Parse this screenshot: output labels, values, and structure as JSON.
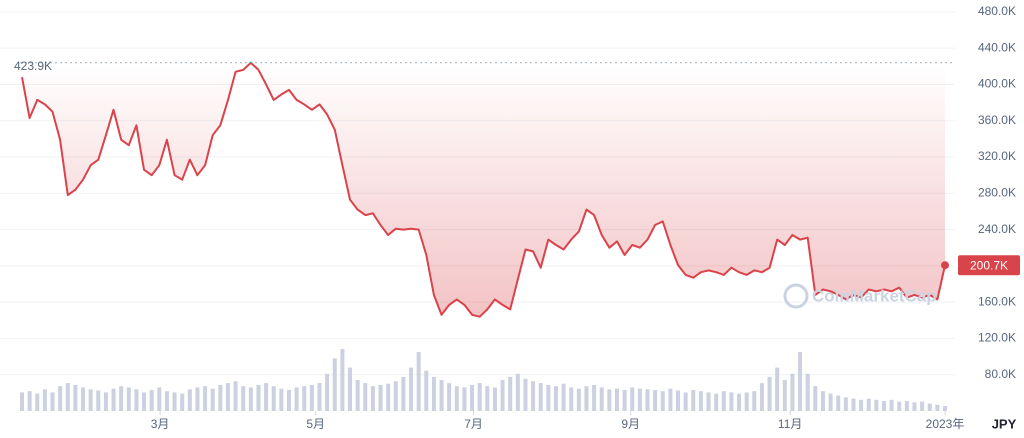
{
  "chart_data": {
    "type": "line",
    "currency": "JPY",
    "watermark": "CoinMarketCap",
    "color": "#d9434a",
    "high_color": "#16c784",
    "volume_color": "#ccd0e0",
    "grid": true,
    "xlim": [
      0,
      121
    ],
    "ylim": [
      40000,
      492000
    ],
    "xticks": [
      {
        "value": 18.1,
        "label": "3月"
      },
      {
        "value": 38.5,
        "label": "5月"
      },
      {
        "value": 59.2,
        "label": "7月"
      },
      {
        "value": 79.8,
        "label": "9月"
      },
      {
        "value": 100.7,
        "label": "11月"
      },
      {
        "value": 121,
        "label": "2023年"
      }
    ],
    "yticks": [
      {
        "value": 80000,
        "label": "80.0K"
      },
      {
        "value": 120000,
        "label": "120.0K"
      },
      {
        "value": 160000,
        "label": "160.0K"
      },
      {
        "value": 200000,
        "label": "200.0K"
      },
      {
        "value": 240000,
        "label": "240.0K"
      },
      {
        "value": 280000,
        "label": "280.0K"
      },
      {
        "value": 320000,
        "label": "320.0K"
      },
      {
        "value": 360000,
        "label": "360.0K"
      },
      {
        "value": 400000,
        "label": "400.0K"
      },
      {
        "value": 440000,
        "label": "440.0K"
      },
      {
        "value": 480000,
        "label": "480.0K"
      }
    ],
    "reference_line": {
      "value": 423900,
      "label": "423.9K"
    },
    "values": [
      408000,
      363000,
      383000,
      378000,
      370000,
      339000,
      278000,
      284000,
      295000,
      311000,
      317000,
      344000,
      372000,
      339000,
      333000,
      355000,
      306000,
      300000,
      311000,
      339000,
      300000,
      295000,
      317000,
      300000,
      311000,
      344000,
      355000,
      383000,
      414000,
      416000,
      423900,
      416000,
      400000,
      383000,
      389000,
      394000,
      383000,
      378000,
      372000,
      378000,
      367000,
      350000,
      311000,
      273000,
      262000,
      256000,
      258000,
      245000,
      234000,
      241000,
      240000,
      241000,
      240000,
      212000,
      168000,
      146000,
      157000,
      163000,
      157000,
      146000,
      144000,
      152000,
      163000,
      157000,
      152000,
      185000,
      218000,
      216000,
      198000,
      229000,
      223000,
      218000,
      229000,
      238000,
      262000,
      256000,
      234000,
      220000,
      227000,
      212000,
      223000,
      220000,
      229000,
      245000,
      249000,
      223000,
      201000,
      190000,
      187000,
      193000,
      195000,
      193000,
      190000,
      198000,
      193000,
      190000,
      195000,
      193000,
      198000,
      229000,
      223000,
      234000,
      229000,
      231000,
      168000,
      174000,
      172000,
      168000,
      163000,
      168000,
      165000,
      174000,
      172000,
      174000,
      172000,
      176000,
      165000,
      168000,
      165000,
      168000,
      163000,
      200700
    ],
    "value_labels": [
      null,
      null,
      null,
      null,
      null,
      null,
      null,
      null,
      null,
      null,
      null,
      null,
      null,
      null,
      null,
      null,
      null,
      null,
      null,
      null,
      null,
      null,
      null,
      null,
      null,
      null,
      null,
      null,
      null,
      null,
      null,
      null,
      null,
      null,
      null,
      null,
      null,
      null,
      null,
      null,
      null,
      null,
      null,
      null,
      null,
      null,
      null,
      null,
      null,
      null,
      null,
      null,
      null,
      null,
      null,
      null,
      null,
      null,
      null,
      null,
      null,
      null,
      null,
      null,
      null,
      null,
      null,
      null,
      null,
      null,
      null,
      null,
      null,
      null,
      null,
      null,
      null,
      null,
      null,
      null,
      null,
      null,
      null,
      null,
      null,
      null,
      null,
      null,
      null,
      null,
      null,
      null,
      null,
      null,
      null,
      null,
      null,
      null,
      null,
      null,
      null,
      null,
      null,
      null,
      null,
      null,
      null,
      null,
      null,
      null,
      null,
      null,
      null,
      null,
      null,
      null,
      null,
      null,
      null,
      null,
      null,
      "200.7K"
    ],
    "volumes": [
      30,
      32,
      28,
      35,
      30,
      40,
      45,
      42,
      38,
      35,
      33,
      30,
      36,
      40,
      38,
      35,
      30,
      34,
      38,
      32,
      30,
      28,
      35,
      38,
      40,
      36,
      42,
      45,
      48,
      40,
      38,
      42,
      45,
      40,
      36,
      34,
      38,
      40,
      42,
      45,
      60,
      85,
      100,
      70,
      50,
      45,
      40,
      42,
      44,
      48,
      55,
      70,
      95,
      65,
      55,
      50,
      45,
      40,
      38,
      42,
      45,
      40,
      38,
      50,
      55,
      60,
      52,
      48,
      45,
      42,
      40,
      44,
      38,
      36,
      40,
      42,
      38,
      35,
      36,
      34,
      38,
      36,
      35,
      34,
      32,
      36,
      33,
      30,
      34,
      32,
      30,
      28,
      32,
      30,
      28,
      30,
      32,
      45,
      55,
      70,
      50,
      60,
      95,
      60,
      40,
      32,
      28,
      25,
      22,
      20,
      18,
      20,
      18,
      16,
      18,
      15,
      16,
      14,
      15,
      12,
      10,
      8
    ],
    "volume_max": 100
  }
}
